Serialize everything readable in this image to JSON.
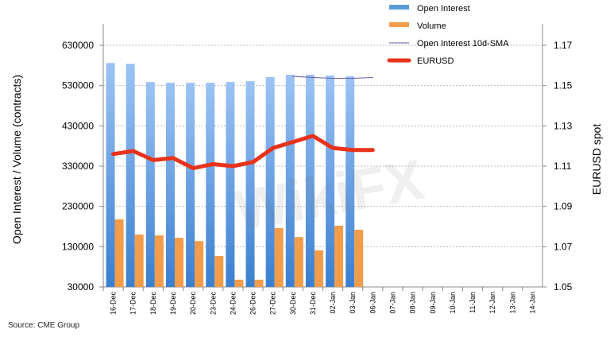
{
  "chart_data": {
    "type": "bar",
    "categories": [
      "16-Dec",
      "17-Dec",
      "18-Dec",
      "19-Dec",
      "20-Dec",
      "23-Dec",
      "24-Dec",
      "26-Dec",
      "27-Dec",
      "30-Dec",
      "31-Dec",
      "02-Jan",
      "03-Jan",
      "06-Jan",
      "07-Jan",
      "08-Jan",
      "09-Jan",
      "10-Jan",
      "11-Jan",
      "12-Jan",
      "13-Jan",
      "14-Jan"
    ],
    "series": [
      {
        "name": "Open Interest",
        "type": "bar",
        "axis": "left",
        "color": "#5b9bd5",
        "values": [
          586000,
          584000,
          539000,
          537000,
          537000,
          537000,
          539000,
          541000,
          551000,
          557000,
          557000,
          555000,
          553000,
          null,
          null,
          null,
          null,
          null,
          null,
          null,
          null,
          null
        ]
      },
      {
        "name": "Volume",
        "type": "bar",
        "axis": "left",
        "color": "#f39c4a",
        "values": [
          198000,
          160000,
          158000,
          152000,
          144000,
          107000,
          48000,
          48000,
          176000,
          154000,
          121000,
          182000,
          172000,
          null,
          null,
          null,
          null,
          null,
          null,
          null,
          null,
          null
        ]
      },
      {
        "name": "Open Interest 10d-SMA",
        "type": "line",
        "axis": "left",
        "color": "#6a5a9e",
        "values": [
          null,
          null,
          null,
          null,
          null,
          null,
          null,
          null,
          null,
          553000,
          550000,
          548000,
          548000,
          550000,
          null,
          null,
          null,
          null,
          null,
          null,
          null,
          null
        ]
      },
      {
        "name": "EURUSD",
        "type": "line",
        "axis": "right",
        "color": "#e8321a",
        "values": [
          1.116,
          1.1175,
          1.113,
          1.114,
          1.109,
          1.111,
          1.11,
          1.112,
          1.119,
          1.122,
          1.125,
          1.119,
          1.118,
          1.118,
          null,
          null,
          null,
          null,
          null,
          null,
          null,
          null
        ]
      }
    ],
    "ylabel": "Open Interest / Volume (contracts)",
    "y2label": "EURUSD spot",
    "ylim": [
      30000,
      630000
    ],
    "yticks": [
      "30000",
      "130000",
      "230000",
      "330000",
      "430000",
      "530000",
      "630000"
    ],
    "y2lim": [
      1.05,
      1.17
    ],
    "y2ticks": [
      "1.05",
      "1.07",
      "1.09",
      "1.11",
      "1.13",
      "1.15",
      "1.17"
    ],
    "grid": true,
    "legend": "top-right"
  },
  "source": "Source: CME Group",
  "watermark": "WikiFX"
}
